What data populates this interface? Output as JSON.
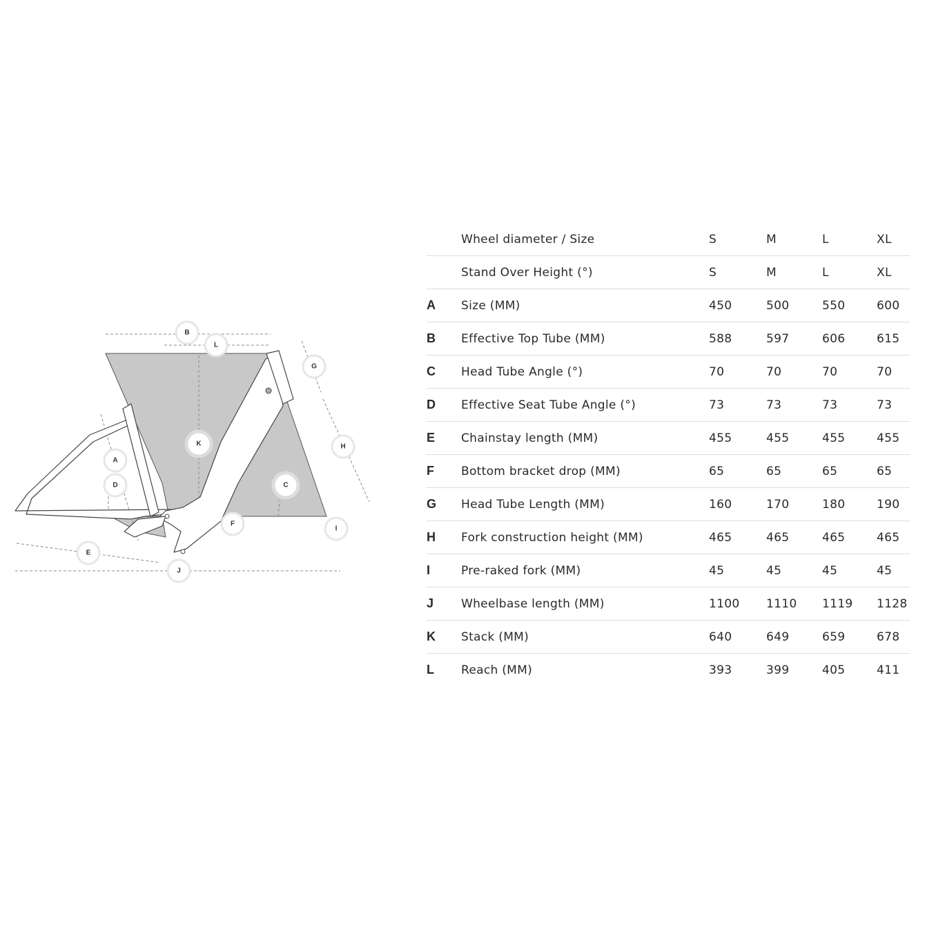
{
  "diagram": {
    "markers": [
      "A",
      "B",
      "C",
      "D",
      "E",
      "F",
      "G",
      "H",
      "I",
      "J",
      "K",
      "L"
    ],
    "colors": {
      "fill": "#c8c8c8",
      "frame": "#ffffff",
      "stroke": "#444444"
    }
  },
  "table": {
    "header": {
      "letter": "",
      "label": "Wheel diameter / Size",
      "values": [
        "S",
        "M",
        "L",
        "XL"
      ]
    },
    "rows": [
      {
        "letter": "",
        "label": "Stand Over Height (°)",
        "values": [
          "S",
          "M",
          "L",
          "XL"
        ]
      },
      {
        "letter": "A",
        "label": "Size (MM)",
        "values": [
          "450",
          "500",
          "550",
          "600"
        ]
      },
      {
        "letter": "B",
        "label": "Effective Top Tube (MM)",
        "values": [
          "588",
          "597",
          "606",
          "615"
        ]
      },
      {
        "letter": "C",
        "label": "Head Tube Angle (°)",
        "values": [
          "70",
          "70",
          "70",
          "70"
        ]
      },
      {
        "letter": "D",
        "label": "Effective Seat Tube Angle (°)",
        "values": [
          "73",
          "73",
          "73",
          "73"
        ]
      },
      {
        "letter": "E",
        "label": "Chainstay length (MM)",
        "values": [
          "455",
          "455",
          "455",
          "455"
        ]
      },
      {
        "letter": "F",
        "label": "Bottom bracket drop (MM)",
        "values": [
          "65",
          "65",
          "65",
          "65"
        ]
      },
      {
        "letter": "G",
        "label": "Head Tube Length (MM)",
        "values": [
          "160",
          "170",
          "180",
          "190"
        ]
      },
      {
        "letter": "H",
        "label": "Fork construction height (MM)",
        "values": [
          "465",
          "465",
          "465",
          "465"
        ]
      },
      {
        "letter": "I",
        "label": "Pre-raked fork (MM)",
        "values": [
          "45",
          "45",
          "45",
          "45"
        ]
      },
      {
        "letter": "J",
        "label": "Wheelbase length (MM)",
        "values": [
          "1100",
          "1110",
          "1119",
          "1128"
        ]
      },
      {
        "letter": "K",
        "label": "Stack (MM)",
        "values": [
          "640",
          "649",
          "659",
          "678"
        ]
      },
      {
        "letter": "L",
        "label": "Reach (MM)",
        "values": [
          "393",
          "399",
          "405",
          "411"
        ]
      }
    ]
  }
}
